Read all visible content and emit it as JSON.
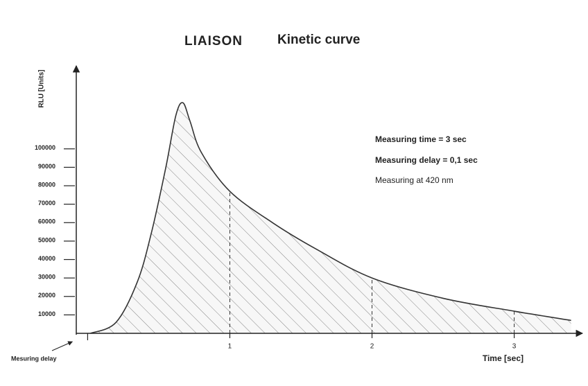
{
  "chart_data": {
    "type": "area",
    "brand": "LIAISON",
    "title": "Kinetic curve",
    "y_label": "RLU [Units]",
    "x_label": "Time [sec]",
    "annotations": [
      "Measuring time  = 3   sec",
      "Measuring delay = 0,1 sec",
      "Measuring at  420 nm"
    ],
    "x": [
      0.02,
      0.2,
      0.35,
      0.45,
      0.55,
      0.62,
      0.67,
      0.72,
      0.8,
      1,
      1.3,
      1.6,
      2,
      2.5,
      3,
      3.4
    ],
    "series": [
      {
        "color": "#333333",
        "values": [
          0,
          6000,
          28000,
          55000,
          90000,
          118000,
          125000,
          115000,
          98000,
          77000,
          60000,
          46000,
          30000,
          19000,
          12000,
          7000
        ]
      }
    ],
    "xlim": [
      -0.08,
      3.48
    ],
    "ylim": [
      0,
      145000
    ],
    "xticks": [
      {
        "value": 0,
        "label": "Mesuring delay"
      },
      1,
      2,
      3
    ],
    "yticks": [
      10000,
      20000,
      30000,
      40000,
      50000,
      60000,
      70000,
      80000,
      90000,
      100000
    ],
    "hatch": true
  }
}
